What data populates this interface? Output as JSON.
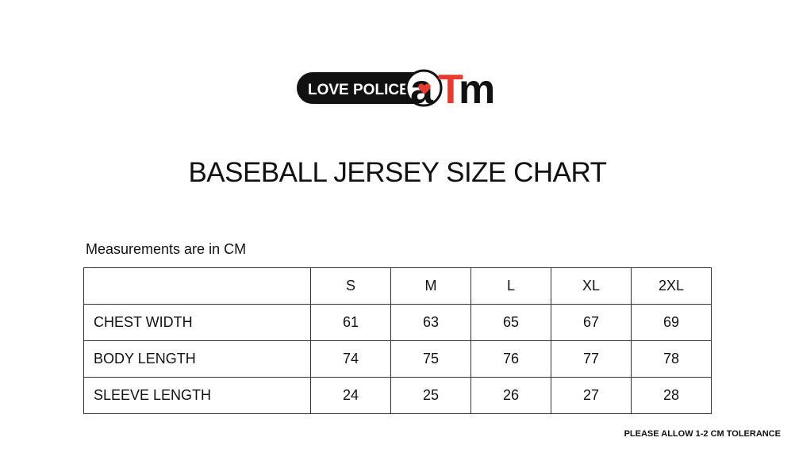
{
  "logo": {
    "brand": "LOVE POLICE",
    "mark": [
      "a",
      "T",
      "m"
    ]
  },
  "title": "BASEBALL JERSEY SIZE CHART",
  "note": "Measurements are in CM",
  "table": {
    "header": [
      "S",
      "M",
      "L",
      "XL",
      "2XL"
    ],
    "rows": [
      {
        "label": "CHEST WIDTH",
        "values": [
          61,
          63,
          65,
          67,
          69
        ]
      },
      {
        "label": "BODY LENGTH",
        "values": [
          74,
          75,
          76,
          77,
          78
        ]
      },
      {
        "label": "SLEEVE LENGTH",
        "values": [
          24,
          25,
          26,
          27,
          28
        ]
      }
    ]
  },
  "footer": "PLEASE ALLOW 1-2 CM TOLERANCE"
}
